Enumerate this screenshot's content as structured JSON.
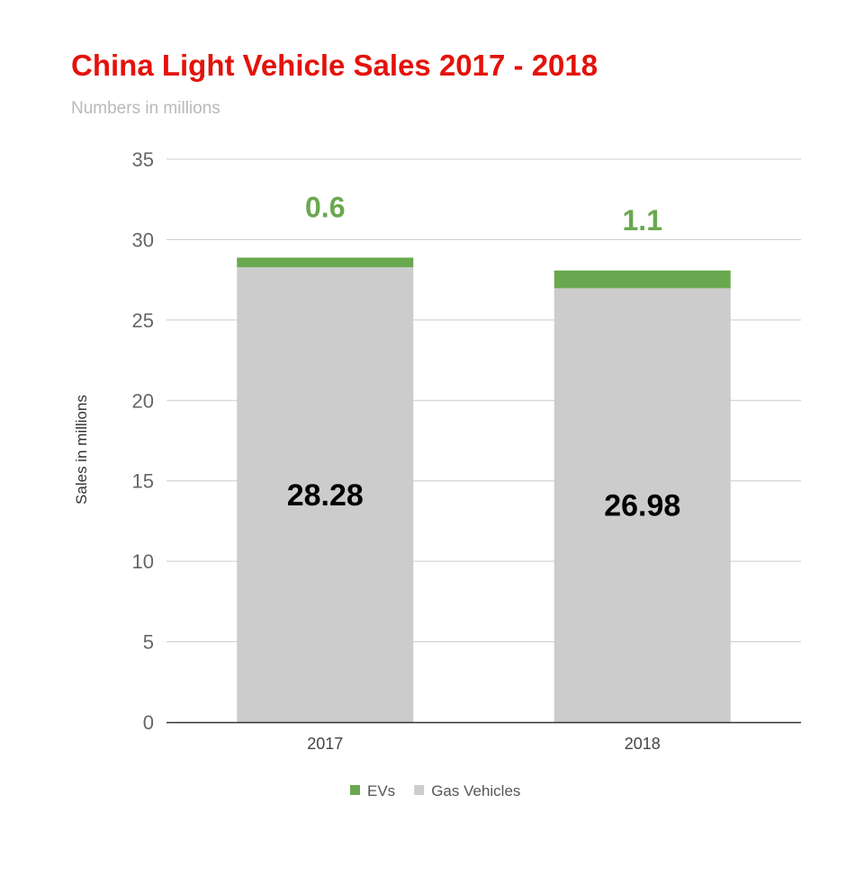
{
  "chart_data": {
    "type": "bar",
    "stacked": true,
    "title": "China Light Vehicle Sales 2017 - 2018",
    "subtitle": "Numbers in millions",
    "xlabel": "",
    "ylabel": "Sales in millions",
    "categories": [
      "2017",
      "2018"
    ],
    "ylim": [
      0,
      35
    ],
    "yticks": [
      0,
      5,
      10,
      15,
      20,
      25,
      30,
      35
    ],
    "grid": true,
    "legend_position": "bottom",
    "series": [
      {
        "name": "Gas Vehicles",
        "values": [
          28.28,
          26.98
        ],
        "labels": [
          "28.28",
          "26.98"
        ],
        "color": "#cccccc",
        "label_color": "#000000"
      },
      {
        "name": "EVs",
        "values": [
          0.6,
          1.1
        ],
        "labels": [
          "0.6",
          "1.1"
        ],
        "color": "#6aa84f",
        "label_color": "#6aa84f"
      }
    ],
    "legend_order": [
      "EVs",
      "Gas Vehicles"
    ],
    "colors": {
      "title": "#e3120b",
      "subtitle": "#b9b9b9",
      "axis_text": "#666666",
      "gridline": "#cccccc",
      "baseline": "#333333"
    }
  }
}
